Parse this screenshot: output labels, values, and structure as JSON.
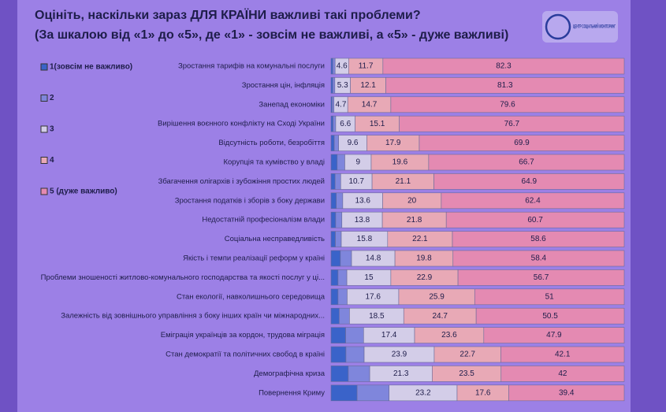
{
  "chart_data": {
    "type": "stacked-bar-horizontal",
    "title": "Оцініть, наскільки зараз ДЛЯ КРАЇНИ важливі такі проблеми?",
    "subtitle": "(За шкалою від «1» до «5», де «1» - зовсім не важливі, а «5» - дуже важливі)",
    "logo": "ЦЕНТР СОЦІАЛЬНИЙ МОНІТОРИНГ",
    "xlim": [
      0,
      100
    ],
    "categories": [
      "Зростання тарифів на комунальні послуги",
      "Зростання цін, інфляція",
      "Занепад економіки",
      "Вирішення воєнного конфлікту на Сході України",
      "Відсутність роботи, безробіття",
      "Корупція та кумівство у владі",
      "Збагачення олігархів і зубожіння простих людей",
      "Зростання податків і зборів з боку держави",
      "Недостатній професіоналізм влади",
      "Соціальна несправедливість",
      "Якість і темпи реалізації реформ у країні",
      "Проблеми зношеності житлово-комунального господарства та якості послуг у ці...",
      "Стан екології, навколишнього середовища",
      "Залежність від зовнішнього управління з боку інших країн чи міжнародних...",
      "Еміграція українців за кордон, трудова міграція",
      "Стан демократії та політичних свобод в країні",
      "Демографічна криза",
      "Повернення Криму"
    ],
    "series": [
      {
        "name": "1(зовсім не важливо)",
        "color": "#3a63c9",
        "show_values": false,
        "values": [
          0.6,
          0.6,
          0.4,
          0.7,
          1.1,
          2.1,
          1.4,
          1.8,
          1.6,
          1.5,
          3.2,
          2.4,
          2.4,
          2.8,
          5.0,
          5.1,
          5.9,
          8.9
        ]
      },
      {
        "name": "2",
        "color": "#7f86dc",
        "show_values": false,
        "values": [
          0.8,
          0.7,
          0.6,
          0.9,
          1.5,
          2.6,
          1.9,
          2.2,
          2.1,
          2.0,
          3.8,
          3.0,
          3.1,
          3.5,
          6.1,
          6.2,
          7.3,
          10.9
        ]
      },
      {
        "name": "3",
        "color": "#d3cde8",
        "show_values": true,
        "values": [
          4.6,
          5.3,
          4.7,
          6.6,
          9.6,
          9,
          10.7,
          13.6,
          13.8,
          15.8,
          14.8,
          15,
          17.6,
          18.5,
          17.4,
          23.9,
          21.3,
          23.2
        ]
      },
      {
        "name": "4",
        "color": "#e8a9b6",
        "show_values": true,
        "values": [
          11.7,
          12.1,
          14.7,
          15.1,
          17.9,
          19.6,
          21.1,
          20,
          21.8,
          22.1,
          19.8,
          22.9,
          25.9,
          24.7,
          23.6,
          22.7,
          23.5,
          17.6
        ]
      },
      {
        "name": "5 (дуже важливо)",
        "color": "#e48ab2",
        "show_values": true,
        "values": [
          82.3,
          81.3,
          79.6,
          76.7,
          69.9,
          66.7,
          64.9,
          62.4,
          60.7,
          58.6,
          58.4,
          56.7,
          51,
          50.5,
          47.9,
          42.1,
          42,
          39.4
        ]
      }
    ]
  }
}
